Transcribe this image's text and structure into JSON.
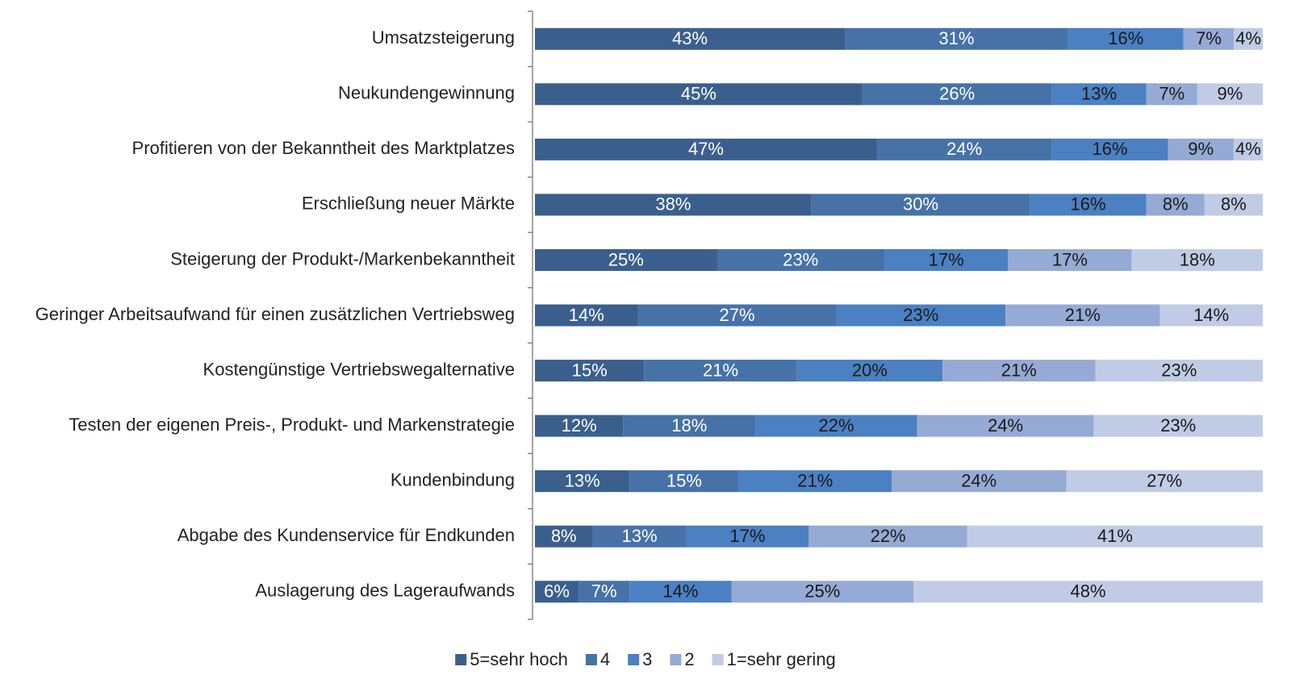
{
  "chart_data": {
    "type": "stacked-bar-horizontal",
    "categories": [
      "Umsatzsteigerung",
      "Neukundengewinnung",
      "Profitieren von der Bekanntheit des Marktplatzes",
      "Erschließung neuer Märkte",
      "Steigerung der Produkt-/Markenbekanntheit",
      "Geringer Arbeitsaufwand für einen zusätzlichen Vertriebsweg",
      "Kostengünstige Vertriebswegalternative",
      "Testen der eigenen Preis-, Produkt- und Markenstrategie",
      "Kundenbindung",
      "Abgabe des Kundenservice für Endkunden",
      "Auslagerung des Lageraufwands"
    ],
    "series": [
      {
        "name": "5=sehr hoch",
        "color": "#3b5f8d",
        "label_color": "#ffffff",
        "values": [
          43,
          45,
          47,
          38,
          25,
          14,
          15,
          12,
          13,
          8,
          6
        ],
        "value_labels": [
          "43%",
          "45%",
          "47%",
          "38%",
          "25%",
          "14%",
          "15%",
          "12%",
          "13%",
          "8%",
          "6%"
        ]
      },
      {
        "name": "4",
        "color": "#4672a8",
        "label_color": "#ffffff",
        "values": [
          31,
          26,
          24,
          30,
          23,
          27,
          21,
          18,
          15,
          13,
          7
        ],
        "value_labels": [
          "31%",
          "26%",
          "24%",
          "30%",
          "23%",
          "27%",
          "21%",
          "18%",
          "15%",
          "13%",
          "7%"
        ]
      },
      {
        "name": "3",
        "color": "#4b80c2",
        "label_color": "#1a1a1a",
        "values": [
          16,
          13,
          16,
          16,
          17,
          23,
          20,
          22,
          21,
          17,
          14
        ],
        "value_labels": [
          "16%",
          "13%",
          "16%",
          "16%",
          "17%",
          "23%",
          "20%",
          "22%",
          "21%",
          "17%",
          "14%"
        ]
      },
      {
        "name": "2",
        "color": "#95aad4",
        "label_color": "#1a1a1a",
        "values": [
          7,
          7,
          9,
          8,
          17,
          21,
          21,
          24,
          24,
          22,
          25
        ],
        "value_labels": [
          "7%",
          "7%",
          "9%",
          "8%",
          "17%",
          "21%",
          "21%",
          "24%",
          "24%",
          "22%",
          "25%"
        ]
      },
      {
        "name": "1=sehr gering",
        "color": "#c0cce5",
        "label_color": "#1a1a1a",
        "values": [
          4,
          9,
          4,
          8,
          18,
          14,
          23,
          23,
          27,
          41,
          48
        ],
        "value_labels": [
          "4%",
          "9%",
          "4%",
          "8%",
          "18%",
          "14%",
          "23%",
          "23%",
          "27%",
          "41%",
          "48%"
        ]
      }
    ]
  }
}
